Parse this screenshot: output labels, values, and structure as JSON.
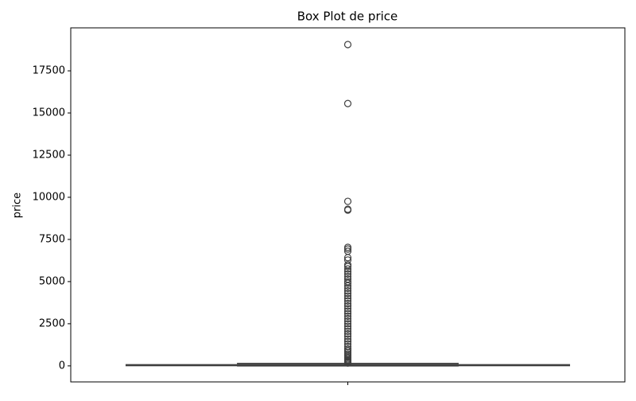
{
  "chart_data": {
    "type": "box",
    "title": "Box Plot de price",
    "ylabel": "price",
    "categories": [
      null
    ],
    "boxes": [
      {
        "whisker_low": 0,
        "q1": 15,
        "median": 35,
        "q3": 70,
        "whisker_high": 150,
        "outliers": [
          19060,
          15560,
          9760,
          9290,
          9240,
          7030,
          6930,
          6800,
          6420,
          6280,
          6000,
          5900,
          5750,
          5600,
          5450,
          5300,
          5150,
          5000,
          4900,
          4750,
          4600,
          4450,
          4300,
          4150,
          4000,
          3850,
          3700,
          3550,
          3400,
          3250,
          3100,
          2950,
          2800,
          2650,
          2500,
          2350,
          2200,
          2050,
          1900,
          1750,
          1600,
          1450,
          1300,
          1150,
          1000,
          900,
          800,
          700,
          600,
          500,
          420,
          350,
          290,
          240,
          200,
          170
        ]
      }
    ],
    "color": "#3f3f3f",
    "ylim": [
      -950,
      20050
    ],
    "yticks": [
      0,
      2500,
      5000,
      7500,
      10000,
      12500,
      15000,
      17500
    ]
  }
}
